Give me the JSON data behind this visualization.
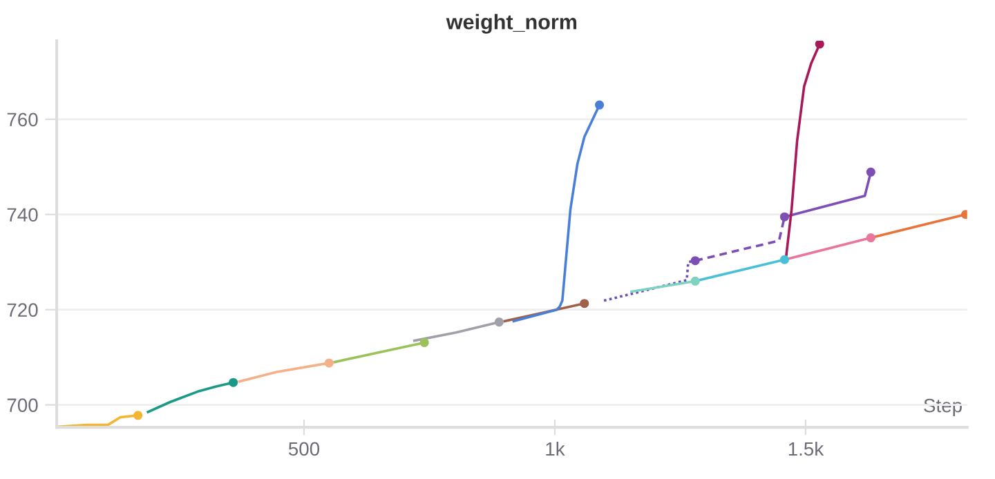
{
  "chart_data": {
    "type": "line",
    "title": "weight_norm",
    "xlabel": "Step",
    "xlim": [
      7,
      1822
    ],
    "ylim": [
      695.3,
      776.5
    ],
    "xticks": [
      {
        "value": 500,
        "label": "500"
      },
      {
        "value": 1000,
        "label": "1k"
      },
      {
        "value": 1500,
        "label": "1.5k"
      }
    ],
    "yticks": [
      700,
      720,
      740,
      760
    ],
    "grid": "y",
    "legend": false,
    "line_style": "solid",
    "series": [
      {
        "color": "#f2b632",
        "x": [
          10,
          67,
          109,
          134,
          169
        ],
        "values": [
          695.4,
          695.8,
          695.8,
          697.4,
          697.8
        ]
      },
      {
        "color": "#1a9a86",
        "x": [
          189,
          233,
          288,
          326,
          359
        ],
        "values": [
          698.5,
          700.6,
          702.8,
          703.9,
          704.7
        ]
      },
      {
        "color": "#f4b08a",
        "x": [
          371,
          445,
          550
        ],
        "values": [
          704.9,
          706.9,
          708.8
        ]
      },
      {
        "color": "#9bc25a",
        "x": [
          561,
          740
        ],
        "values": [
          709.0,
          713.1
        ]
      },
      {
        "color": "#a0a0a8",
        "x": [
          720,
          803,
          889
        ],
        "values": [
          713.5,
          715.2,
          717.4
        ]
      },
      {
        "color": "#a0614a",
        "x": [
          900,
          1059
        ],
        "values": [
          717.6,
          721.3
        ]
      },
      {
        "color": "#4a7fd8",
        "x": [
          918,
          1004,
          1010,
          1015,
          1031,
          1045,
          1059,
          1089
        ],
        "values": [
          717.6,
          720.0,
          720.7,
          721.9,
          741.0,
          750.6,
          756.3,
          763.0
        ]
      },
      {
        "color": "#6a50b8",
        "line_style": "dotted",
        "x": [
          1098,
          1263,
          1266,
          1280
        ],
        "values": [
          721.9,
          726.2,
          730.0,
          730.3
        ]
      },
      {
        "color": "#7dd3c0",
        "x": [
          1153,
          1280
        ],
        "values": [
          723.8,
          726.0
        ]
      },
      {
        "color": "#7d4fb5",
        "line_style": "dashed",
        "x": [
          1280,
          1447,
          1458
        ],
        "values": [
          730.3,
          734.5,
          739.5
        ]
      },
      {
        "color": "#4ac0d8",
        "x": [
          1280,
          1458
        ],
        "values": [
          726.0,
          730.5
        ]
      },
      {
        "color": "#7d4fb5",
        "x": [
          1458,
          1618,
          1630
        ],
        "values": [
          739.5,
          743.9,
          748.9
        ]
      },
      {
        "color": "#e8779a",
        "x": [
          1458,
          1630
        ],
        "values": [
          730.5,
          735.1
        ]
      },
      {
        "color": "#e8743b",
        "x": [
          1630,
          1726,
          1819
        ],
        "values": [
          735.1,
          737.6,
          740.0
        ]
      },
      {
        "color": "#a8195a",
        "x": [
          1461,
          1472,
          1483,
          1497,
          1511,
          1528
        ],
        "values": [
          731.0,
          741.0,
          755.4,
          766.9,
          771.7,
          775.8
        ]
      },
      {
        "type": "scatter",
        "marker": "circle",
        "x": [
          169,
          359,
          550,
          740,
          889,
          1059,
          1089,
          1280,
          1280,
          1458,
          1458,
          1630,
          1630,
          1819,
          1528
        ],
        "values": [
          697.8,
          704.7,
          708.8,
          713.1,
          717.4,
          721.3,
          763.0,
          730.3,
          726.0,
          739.5,
          730.5,
          748.9,
          735.1,
          740.0,
          775.8
        ],
        "colors": [
          "#f2b632",
          "#1a9a86",
          "#f4b08a",
          "#9bc25a",
          "#a0a0a8",
          "#a0614a",
          "#4a7fd8",
          "#7d4fb5",
          "#7dd3c0",
          "#7d4fb5",
          "#4ac0d8",
          "#7d4fb5",
          "#e8779a",
          "#e8743b",
          "#a8195a"
        ]
      }
    ]
  }
}
